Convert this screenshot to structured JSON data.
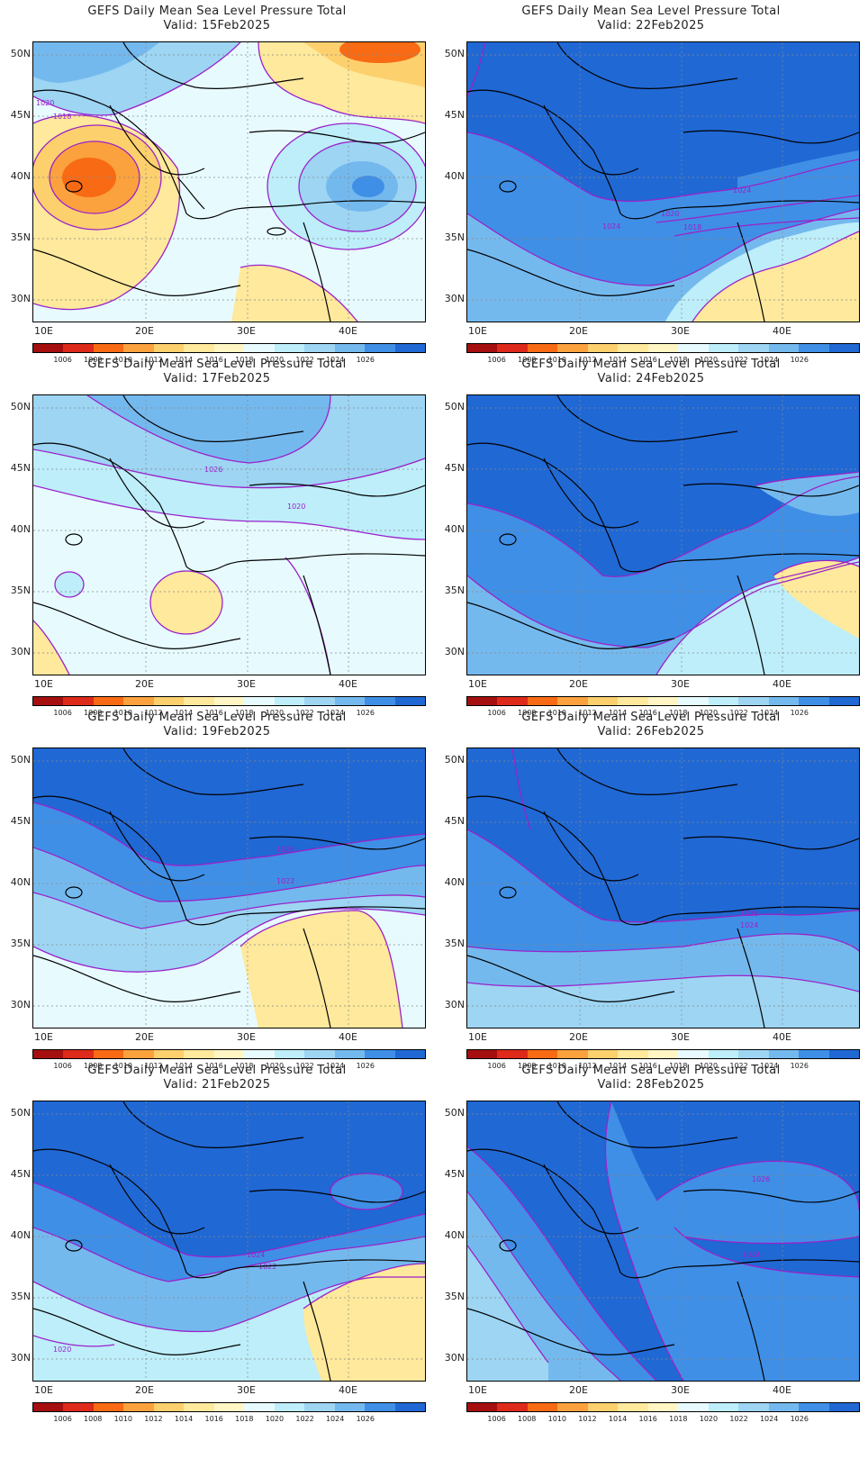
{
  "figure": {
    "title": "GEFS Daily Mean Sea Level Pressure Total",
    "lat_labels": [
      "50N",
      "45N",
      "40N",
      "35N",
      "30N"
    ],
    "lon_labels": [
      "10E",
      "20E",
      "30E",
      "40E"
    ],
    "colorbar": {
      "labels": [
        "1006",
        "1008",
        "1010",
        "1012",
        "1014",
        "1016",
        "1018",
        "1020",
        "1022",
        "1024",
        "1026"
      ],
      "colors": [
        "#a50f0f",
        "#dd2a1a",
        "#f86a14",
        "#fba23e",
        "#fdd06e",
        "#fee99c",
        "#fff6c4",
        "#e7fbff",
        "#bdeefa",
        "#9dd5f3",
        "#74b9ee",
        "#3f8fe6",
        "#2068d4"
      ]
    }
  },
  "panels": [
    {
      "id": "p1",
      "valid": "Valid: 15Feb2025",
      "contour_labels": [
        "1020",
        "1018"
      ],
      "col": 0,
      "row": 0
    },
    {
      "id": "p2",
      "valid": "Valid: 22Feb2025",
      "contour_labels": [
        "1024",
        "1020",
        "1024",
        "1018"
      ],
      "col": 1,
      "row": 0
    },
    {
      "id": "p3",
      "valid": "Valid: 17Feb2025",
      "contour_labels": [
        "1026",
        "1020"
      ],
      "col": 0,
      "row": 1
    },
    {
      "id": "p4",
      "valid": "Valid: 24Feb2025",
      "contour_labels": [],
      "col": 1,
      "row": 1
    },
    {
      "id": "p5",
      "valid": "Valid: 19Feb2025",
      "contour_labels": [
        "1026",
        "1022"
      ],
      "col": 0,
      "row": 2
    },
    {
      "id": "p6",
      "valid": "Valid: 26Feb2025",
      "contour_labels": [
        "1026",
        "1024"
      ],
      "col": 1,
      "row": 2
    },
    {
      "id": "p7",
      "valid": "Valid: 21Feb2025",
      "contour_labels": [
        "1024",
        "1022",
        "1020"
      ],
      "col": 0,
      "row": 3
    },
    {
      "id": "p8",
      "valid": "Valid: 28Feb2025",
      "contour_labels": [
        "1026",
        "1024"
      ],
      "col": 1,
      "row": 3
    }
  ]
}
